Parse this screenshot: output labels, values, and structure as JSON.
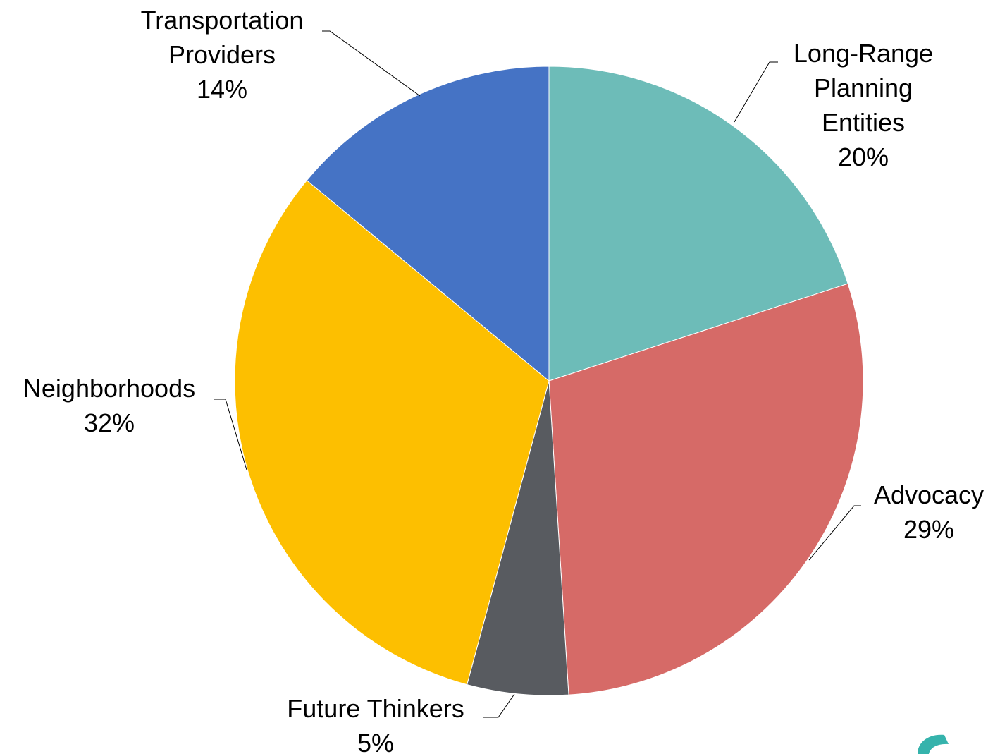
{
  "chart_data": {
    "type": "pie",
    "title": "",
    "start_angle_deg": 0,
    "direction": "clockwise",
    "slices": [
      {
        "name": "Long-Range Planning Entities",
        "label_lines": [
          "Long-Range",
          "Planning",
          "Entities"
        ],
        "percent_label": "20%",
        "value": 20,
        "color": "#6dbcb8"
      },
      {
        "name": "Advocacy",
        "label_lines": [
          "Advocacy"
        ],
        "percent_label": "29%",
        "value": 29,
        "color": "#d66a67"
      },
      {
        "name": "Future Thinkers",
        "label_lines": [
          "Future Thinkers"
        ],
        "percent_label": "5%",
        "value": 5.2,
        "color": "#585b60"
      },
      {
        "name": "Neighborhoods",
        "label_lines": [
          "Neighborhoods"
        ],
        "percent_label": "32%",
        "value": 31.8,
        "color": "#fdbf00"
      },
      {
        "name": "Transportation Providers",
        "label_lines": [
          "Transportation",
          "Providers"
        ],
        "percent_label": "14%",
        "value": 14,
        "color": "#4573c5"
      }
    ]
  },
  "decor": {
    "corner_logo_icon": "teal-logo-fragment-icon",
    "corner_logo_color": "#35b3ac"
  }
}
